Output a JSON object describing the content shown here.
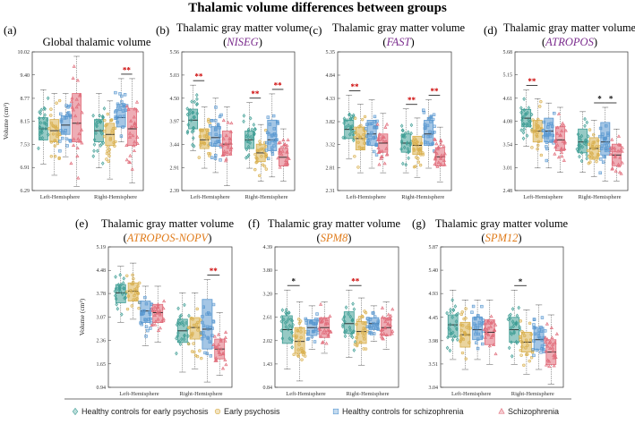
{
  "figure_title": "Thalamic volume differences between groups",
  "colors": {
    "healthy_early": "#3f9e95",
    "early": "#d9b04e",
    "healthy_scz": "#5a98d0",
    "scz": "#e06a78",
    "sig": "#cc0000"
  },
  "legend": [
    {
      "label": "Healthy controls for early psychosis",
      "marker": "diamond",
      "color_key": "healthy_early"
    },
    {
      "label": "Early psychosis",
      "marker": "circle",
      "color_key": "early"
    },
    {
      "label": "Healthy controls for schizophrenia",
      "marker": "square",
      "color_key": "healthy_scz"
    },
    {
      "label": "Schizophrenia",
      "marker": "triangle",
      "color_key": "scz"
    }
  ],
  "chart_data": [
    {
      "id": "a",
      "letter": "(a)",
      "title": "Global thalamic volume",
      "subtitle": "",
      "subtitle_color": "",
      "type": "box",
      "ylabel": "Volume (cm³)",
      "yticks": [
        "6.29",
        "6.91",
        "7.53",
        "8.15",
        "8.77",
        "9.40",
        "10.02"
      ],
      "ylim": [
        6.29,
        10.02
      ],
      "categories": [
        "Left-Hemisphere",
        "Right-Hemisphere"
      ],
      "groups": [
        [
          {
            "q1": 7.65,
            "med": 7.95,
            "q3": 8.25,
            "lo": 7.0,
            "hi": 9.0
          },
          {
            "q1": 7.6,
            "med": 7.9,
            "q3": 8.2,
            "lo": 6.7,
            "hi": 8.9
          },
          {
            "q1": 7.8,
            "med": 8.05,
            "q3": 8.3,
            "lo": 7.2,
            "hi": 8.9
          },
          {
            "q1": 7.6,
            "med": 8.1,
            "q3": 8.9,
            "lo": 6.4,
            "hi": 9.9
          }
        ],
        [
          {
            "q1": 7.6,
            "med": 7.9,
            "q3": 8.2,
            "lo": 6.9,
            "hi": 8.9
          },
          {
            "q1": 7.5,
            "med": 7.8,
            "q3": 8.1,
            "lo": 6.6,
            "hi": 8.7
          },
          {
            "q1": 8.0,
            "med": 8.25,
            "q3": 8.55,
            "lo": 7.6,
            "hi": 9.3
          },
          {
            "q1": 7.5,
            "med": 7.95,
            "q3": 8.5,
            "lo": 6.5,
            "hi": 9.3
          }
        ]
      ],
      "sig": [
        {
          "cat": 1,
          "from": 2,
          "to": 3,
          "label": "**",
          "color_key": "sig"
        }
      ]
    },
    {
      "id": "b",
      "letter": "(b)",
      "title": "Thalamic gray matter volume",
      "subtitle": "NISEG",
      "subtitle_color": "#7b2d8e",
      "type": "box",
      "ylabel": "",
      "yticks": [
        "2.39",
        "2.91",
        "3.44",
        "3.97",
        "4.50",
        "5.03",
        "5.56"
      ],
      "ylim": [
        2.39,
        5.56
      ],
      "categories": [
        "Left-Hemisphere",
        "Right-Hemisphere"
      ],
      "groups": [
        [
          {
            "q1": 3.8,
            "med": 4.0,
            "q3": 4.25,
            "lo": 3.3,
            "hi": 4.8
          },
          {
            "q1": 3.35,
            "med": 3.55,
            "q3": 3.8,
            "lo": 2.9,
            "hi": 4.3
          },
          {
            "q1": 3.4,
            "med": 3.6,
            "q3": 3.85,
            "lo": 2.8,
            "hi": 4.5
          },
          {
            "q1": 3.2,
            "med": 3.45,
            "q3": 3.75,
            "lo": 2.5,
            "hi": 4.3
          }
        ],
        [
          {
            "q1": 3.35,
            "med": 3.55,
            "q3": 3.75,
            "lo": 2.9,
            "hi": 4.4
          },
          {
            "q1": 3.05,
            "med": 3.25,
            "q3": 3.45,
            "lo": 2.6,
            "hi": 3.9
          },
          {
            "q1": 3.3,
            "med": 3.55,
            "q3": 4.0,
            "lo": 2.7,
            "hi": 4.6
          },
          {
            "q1": 2.95,
            "med": 3.15,
            "q3": 3.35,
            "lo": 2.6,
            "hi": 3.8
          }
        ]
      ],
      "sig": [
        {
          "cat": 0,
          "from": 0,
          "to": 1,
          "label": "**",
          "color_key": "sig"
        },
        {
          "cat": 1,
          "from": 0,
          "to": 1,
          "label": "**",
          "color_key": "sig"
        },
        {
          "cat": 1,
          "from": 2,
          "to": 3,
          "label": "**",
          "color_key": "sig"
        }
      ]
    },
    {
      "id": "c",
      "letter": "(c)",
      "title": "Thalamic gray matter volume",
      "subtitle": "FAST",
      "subtitle_color": "#7b2d8e",
      "type": "box",
      "ylabel": "",
      "yticks": [
        "2.31",
        "2.81",
        "3.32",
        "3.82",
        "4.33",
        "4.84",
        "5.35"
      ],
      "ylim": [
        2.31,
        5.35
      ],
      "categories": [
        "Left-Hemisphere",
        "Right-Hemisphere"
      ],
      "groups": [
        [
          {
            "q1": 3.45,
            "med": 3.65,
            "q3": 3.85,
            "lo": 3.0,
            "hi": 4.4
          },
          {
            "q1": 3.2,
            "med": 3.45,
            "q3": 3.7,
            "lo": 2.7,
            "hi": 4.2
          },
          {
            "q1": 3.3,
            "med": 3.55,
            "q3": 3.85,
            "lo": 2.8,
            "hi": 4.3
          },
          {
            "q1": 3.15,
            "med": 3.35,
            "q3": 3.55,
            "lo": 2.7,
            "hi": 4.0
          }
        ],
        [
          {
            "q1": 3.15,
            "med": 3.35,
            "q3": 3.55,
            "lo": 2.7,
            "hi": 4.1
          },
          {
            "q1": 3.1,
            "med": 3.3,
            "q3": 3.5,
            "lo": 2.6,
            "hi": 3.9
          },
          {
            "q1": 3.3,
            "med": 3.55,
            "q3": 3.85,
            "lo": 2.8,
            "hi": 4.3
          },
          {
            "q1": 2.85,
            "med": 3.05,
            "q3": 3.25,
            "lo": 2.5,
            "hi": 3.7
          }
        ]
      ],
      "sig": [
        {
          "cat": 0,
          "from": 0,
          "to": 1,
          "label": "**",
          "color_key": "sig"
        },
        {
          "cat": 1,
          "from": 0,
          "to": 1,
          "label": "**",
          "color_key": "sig"
        },
        {
          "cat": 1,
          "from": 2,
          "to": 3,
          "label": "**",
          "color_key": "sig"
        }
      ]
    },
    {
      "id": "d",
      "letter": "(d)",
      "title": "Thalamic gray matter volume",
      "subtitle": "ATROPOS",
      "subtitle_color": "#7b2d8e",
      "type": "box",
      "ylabel": "",
      "yticks": [
        "2.48",
        "3.01",
        "3.54",
        "4.08",
        "4.61",
        "5.15",
        "5.68"
      ],
      "ylim": [
        2.48,
        5.68
      ],
      "categories": [
        "Left-Hemisphere",
        "Right-Hemisphere"
      ],
      "groups": [
        [
          {
            "q1": 3.95,
            "med": 4.15,
            "q3": 4.35,
            "lo": 3.5,
            "hi": 4.8
          },
          {
            "q1": 3.6,
            "med": 3.85,
            "q3": 4.1,
            "lo": 3.0,
            "hi": 4.6
          },
          {
            "q1": 3.6,
            "med": 3.85,
            "q3": 4.15,
            "lo": 3.0,
            "hi": 4.5
          },
          {
            "q1": 3.4,
            "med": 3.65,
            "q3": 3.95,
            "lo": 2.9,
            "hi": 4.4
          }
        ],
        [
          {
            "q1": 3.35,
            "med": 3.6,
            "q3": 3.9,
            "lo": 2.9,
            "hi": 4.3
          },
          {
            "q1": 3.2,
            "med": 3.45,
            "q3": 3.7,
            "lo": 2.8,
            "hi": 4.1
          },
          {
            "q1": 3.3,
            "med": 3.6,
            "q3": 4.05,
            "lo": 2.7,
            "hi": 4.4
          },
          {
            "q1": 3.05,
            "med": 3.3,
            "q3": 3.55,
            "lo": 2.7,
            "hi": 3.9
          }
        ]
      ],
      "sig": [
        {
          "cat": 0,
          "from": 0,
          "to": 1,
          "label": "**",
          "color_key": "sig"
        },
        {
          "cat": 1,
          "from": 1,
          "to": 2,
          "label": "*",
          "color_key": "black"
        },
        {
          "cat": 1,
          "from": 2,
          "to": 3,
          "label": "*",
          "color_key": "black"
        }
      ]
    },
    {
      "id": "e",
      "letter": "(e)",
      "title": "Thalamic gray matter volume",
      "subtitle": "ATROPOS-NOPV",
      "subtitle_color": "#e07b1a",
      "type": "box",
      "ylabel": "Volume (cm³)",
      "yticks": [
        "0.94",
        "1.65",
        "2.36",
        "3.07",
        "3.78",
        "4.48",
        "5.19"
      ],
      "ylim": [
        0.94,
        5.19
      ],
      "categories": [
        "Left-Hemisphere",
        "Right-Hemisphere"
      ],
      "groups": [
        [
          {
            "q1": 3.5,
            "med": 3.8,
            "q3": 4.05,
            "lo": 2.9,
            "hi": 4.6
          },
          {
            "q1": 3.55,
            "med": 3.85,
            "q3": 4.1,
            "lo": 3.0,
            "hi": 4.7
          },
          {
            "q1": 2.9,
            "med": 3.25,
            "q3": 3.55,
            "lo": 2.2,
            "hi": 4.0
          },
          {
            "q1": 2.9,
            "med": 3.2,
            "q3": 3.45,
            "lo": 2.3,
            "hi": 4.0
          }
        ],
        [
          {
            "q1": 2.3,
            "med": 2.65,
            "q3": 3.0,
            "lo": 1.4,
            "hi": 3.8
          },
          {
            "q1": 2.4,
            "med": 2.75,
            "q3": 3.05,
            "lo": 1.5,
            "hi": 3.8
          },
          {
            "q1": 2.1,
            "med": 2.7,
            "q3": 3.6,
            "lo": 1.1,
            "hi": 4.2
          },
          {
            "q1": 1.8,
            "med": 2.1,
            "q3": 2.4,
            "lo": 1.3,
            "hi": 3.2
          }
        ]
      ],
      "sig": [
        {
          "cat": 1,
          "from": 2,
          "to": 3,
          "label": "**",
          "color_key": "sig"
        }
      ]
    },
    {
      "id": "f",
      "letter": "(f)",
      "title": "Thalamic gray matter volume",
      "subtitle": "SPM8",
      "subtitle_color": "#e07b1a",
      "type": "box",
      "ylabel": "",
      "yticks": [
        "0.84",
        "1.43",
        "2.02",
        "2.61",
        "3.20",
        "3.80",
        "4.39"
      ],
      "ylim": [
        0.84,
        4.39
      ],
      "categories": [
        "Left-Hemisphere",
        "Right-Hemisphere"
      ],
      "groups": [
        [
          {
            "q1": 1.95,
            "med": 2.3,
            "q3": 2.65,
            "lo": 1.3,
            "hi": 3.3
          },
          {
            "q1": 1.7,
            "med": 2.0,
            "q3": 2.35,
            "lo": 1.0,
            "hi": 3.0
          },
          {
            "q1": 2.15,
            "med": 2.35,
            "q3": 2.55,
            "lo": 1.8,
            "hi": 2.9
          },
          {
            "q1": 2.1,
            "med": 2.35,
            "q3": 2.6,
            "lo": 1.7,
            "hi": 3.0
          }
        ],
        [
          {
            "q1": 2.2,
            "med": 2.45,
            "q3": 2.75,
            "lo": 1.6,
            "hi": 3.3
          },
          {
            "q1": 1.95,
            "med": 2.25,
            "q3": 2.5,
            "lo": 1.4,
            "hi": 3.1
          },
          {
            "q1": 2.3,
            "med": 2.45,
            "q3": 2.6,
            "lo": 2.0,
            "hi": 2.9
          },
          {
            "q1": 2.15,
            "med": 2.35,
            "q3": 2.6,
            "lo": 1.8,
            "hi": 3.0
          }
        ]
      ],
      "sig": [
        {
          "cat": 0,
          "from": 0,
          "to": 1,
          "label": "*",
          "color_key": "black"
        },
        {
          "cat": 1,
          "from": 0,
          "to": 1,
          "label": "**",
          "color_key": "sig"
        }
      ]
    },
    {
      "id": "g",
      "letter": "(g)",
      "title": "Thalamic gray matter volume",
      "subtitle": "SPM12",
      "subtitle_color": "#e07b1a",
      "type": "box",
      "ylabel": "",
      "yticks": [
        "3.04",
        "3.51",
        "3.98",
        "4.45",
        "4.93",
        "5.40",
        "5.87"
      ],
      "ylim": [
        3.04,
        5.87
      ],
      "categories": [
        "Left-Hemisphere",
        "Right-Hemisphere"
      ],
      "groups": [
        [
          {
            "q1": 4.05,
            "med": 4.3,
            "q3": 4.5,
            "lo": 3.6,
            "hi": 5.0
          },
          {
            "q1": 3.85,
            "med": 4.1,
            "q3": 4.35,
            "lo": 3.4,
            "hi": 4.8
          },
          {
            "q1": 4.0,
            "med": 4.2,
            "q3": 4.45,
            "lo": 3.6,
            "hi": 4.8
          },
          {
            "q1": 3.9,
            "med": 4.15,
            "q3": 4.4,
            "lo": 3.5,
            "hi": 4.8
          }
        ],
        [
          {
            "q1": 3.95,
            "med": 4.2,
            "q3": 4.45,
            "lo": 3.5,
            "hi": 5.0
          },
          {
            "q1": 3.75,
            "med": 3.95,
            "q3": 4.15,
            "lo": 3.3,
            "hi": 4.6
          },
          {
            "q1": 3.8,
            "med": 4.0,
            "q3": 4.25,
            "lo": 3.4,
            "hi": 4.7
          },
          {
            "q1": 3.5,
            "med": 3.75,
            "q3": 4.0,
            "lo": 3.1,
            "hi": 4.5
          }
        ]
      ],
      "sig": [
        {
          "cat": 1,
          "from": 0,
          "to": 1,
          "label": "*",
          "color_key": "black"
        }
      ]
    }
  ]
}
